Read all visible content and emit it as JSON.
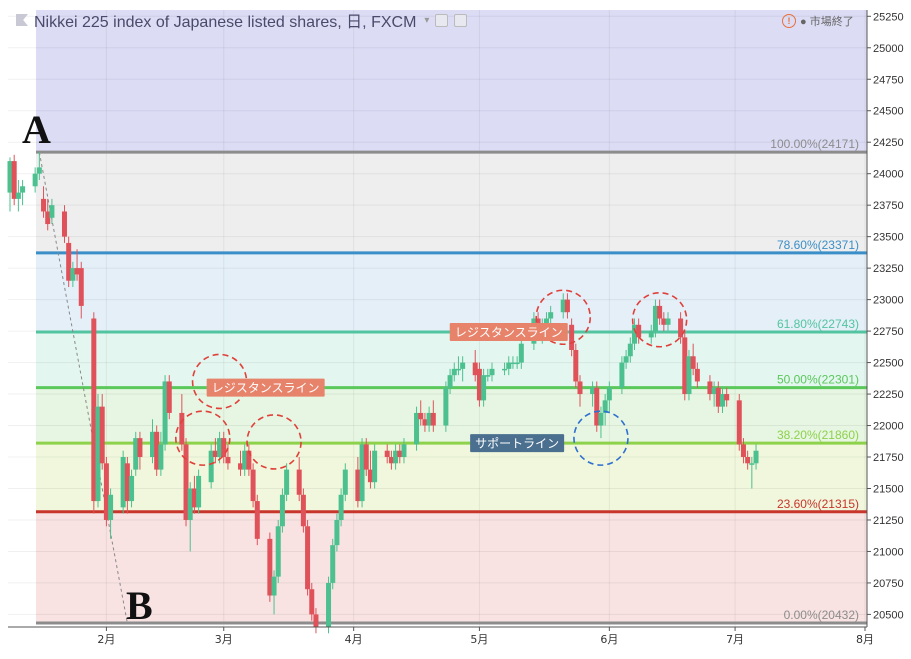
{
  "header": {
    "title": "Nikkei 225 index of Japanese listed shares, 日, FXCM",
    "caret": "▾",
    "status_icon": "warning-icon",
    "status_text": "● 市場終了"
  },
  "points": {
    "a": "A",
    "b": "B"
  },
  "annotations": [
    {
      "text": "レジスタンスライン",
      "color": "#e8836b",
      "x_date": "2018-05-08",
      "y": 22743
    },
    {
      "text": "レジスタンスライン",
      "color": "#e8836b",
      "x_date": "2018-03-11",
      "y": 22301
    },
    {
      "text": "サポートライン",
      "color": "#4a6f8f",
      "x_date": "2018-05-10",
      "y": 21860
    }
  ],
  "colors": {
    "up": "#4cc08f",
    "down": "#e0525a"
  },
  "chart_data": {
    "type": "candlestick",
    "title": "Nikkei 225 index of Japanese listed shares, 日, FXCM",
    "ylim": [
      20400,
      25300
    ],
    "y_ticks": [
      20500,
      20750,
      21000,
      21250,
      21500,
      21750,
      22000,
      22250,
      22500,
      22750,
      23000,
      23250,
      23500,
      23750,
      24000,
      24250,
      24500,
      24750,
      25000,
      25250
    ],
    "x_ticks": [
      {
        "label": "2月",
        "date": "2018-02-01"
      },
      {
        "label": "3月",
        "date": "2018-03-01"
      },
      {
        "label": "4月",
        "date": "2018-04-01"
      },
      {
        "label": "5月",
        "date": "2018-05-01"
      },
      {
        "label": "6月",
        "date": "2018-06-01"
      },
      {
        "label": "7月",
        "date": "2018-07-01"
      },
      {
        "label": "8月",
        "date": "2018-08-01"
      }
    ],
    "x_range": [
      "2018-01-09",
      "2018-08-01"
    ],
    "fib_levels": [
      {
        "label": "100.00%(24171)",
        "value": 24171,
        "color": "#8c8c8c",
        "band": "#eeeeee"
      },
      {
        "label": "78.60%(23371)",
        "value": 23371,
        "color": "#3a8fc8",
        "band": "#e4eff8"
      },
      {
        "label": "61.80%(22743)",
        "value": 22743,
        "color": "#52c5a0",
        "band": "#e3f6ef"
      },
      {
        "label": "50.00%(22301)",
        "value": 22301,
        "color": "#5bc85c",
        "band": "#e6f6e2"
      },
      {
        "label": "38.20%(21860)",
        "value": 21860,
        "color": "#8ed14a",
        "band": "#f0f7dc"
      },
      {
        "label": "23.60%(21315)",
        "value": 21315,
        "color": "#c8352b",
        "band": "#f8e2e2"
      },
      {
        "label": "0.00%(20432)",
        "value": 20432,
        "color": "#8c8c8c",
        "band": ""
      }
    ],
    "circles": [
      {
        "date": "2018-02-24",
        "price": 21900,
        "color": "#e0403a"
      },
      {
        "date": "2018-02-28",
        "price": 22350,
        "color": "#e0403a"
      },
      {
        "date": "2018-03-13",
        "price": 21870,
        "color": "#e0403a"
      },
      {
        "date": "2018-05-21",
        "price": 22860,
        "color": "#e0403a"
      },
      {
        "date": "2018-06-13",
        "price": 22840,
        "color": "#e0403a"
      },
      {
        "date": "2018-05-30",
        "price": 21900,
        "color": "#2f6fd0"
      }
    ],
    "candles": [
      {
        "d": "2018-01-09",
        "o": 23850,
        "h": 24130,
        "l": 23700,
        "c": 24100
      },
      {
        "d": "2018-01-10",
        "o": 24100,
        "h": 24150,
        "l": 23750,
        "c": 23800
      },
      {
        "d": "2018-01-11",
        "o": 23800,
        "h": 23950,
        "l": 23700,
        "c": 23850
      },
      {
        "d": "2018-01-12",
        "o": 23850,
        "h": 23950,
        "l": 23750,
        "c": 23900
      },
      {
        "d": "2018-01-15",
        "o": 23900,
        "h": 24050,
        "l": 23850,
        "c": 24000
      },
      {
        "d": "2018-01-16",
        "o": 24000,
        "h": 24170,
        "l": 23950,
        "c": 24050
      },
      {
        "d": "2018-01-17",
        "o": 23800,
        "h": 23900,
        "l": 23650,
        "c": 23700
      },
      {
        "d": "2018-01-18",
        "o": 23700,
        "h": 23800,
        "l": 23550,
        "c": 23600
      },
      {
        "d": "2018-01-19",
        "o": 23650,
        "h": 23800,
        "l": 23600,
        "c": 23750
      },
      {
        "d": "2018-01-22",
        "o": 23700,
        "h": 23750,
        "l": 23450,
        "c": 23500
      },
      {
        "d": "2018-01-23",
        "o": 23450,
        "h": 23500,
        "l": 23100,
        "c": 23150
      },
      {
        "d": "2018-01-24",
        "o": 23150,
        "h": 23300,
        "l": 23100,
        "c": 23250
      },
      {
        "d": "2018-01-25",
        "o": 23250,
        "h": 23400,
        "l": 23150,
        "c": 23200
      },
      {
        "d": "2018-01-26",
        "o": 23250,
        "h": 23300,
        "l": 22850,
        "c": 22950
      },
      {
        "d": "2018-01-29",
        "o": 22850,
        "h": 22900,
        "l": 21300,
        "c": 21400
      },
      {
        "d": "2018-01-30",
        "o": 21400,
        "h": 22250,
        "l": 21350,
        "c": 22150
      },
      {
        "d": "2018-01-31",
        "o": 22150,
        "h": 22250,
        "l": 21650,
        "c": 21700
      },
      {
        "d": "2018-02-01",
        "o": 21700,
        "h": 21750,
        "l": 21200,
        "c": 21250
      },
      {
        "d": "2018-02-02",
        "o": 21250,
        "h": 21500,
        "l": 21100,
        "c": 21450
      },
      {
        "d": "2018-02-05",
        "o": 21350,
        "h": 21800,
        "l": 21300,
        "c": 21750
      },
      {
        "d": "2018-02-06",
        "o": 21700,
        "h": 21750,
        "l": 21300,
        "c": 21400
      },
      {
        "d": "2018-02-07",
        "o": 21400,
        "h": 21650,
        "l": 21350,
        "c": 21600
      },
      {
        "d": "2018-02-08",
        "o": 21650,
        "h": 21950,
        "l": 21600,
        "c": 21900
      },
      {
        "d": "2018-02-09",
        "o": 21900,
        "h": 21950,
        "l": 21650,
        "c": 21750
      },
      {
        "d": "2018-02-12",
        "o": 21750,
        "h": 22050,
        "l": 21700,
        "c": 21950
      },
      {
        "d": "2018-02-13",
        "o": 21950,
        "h": 22000,
        "l": 21600,
        "c": 21650
      },
      {
        "d": "2018-02-14",
        "o": 21650,
        "h": 21950,
        "l": 21600,
        "c": 21850
      },
      {
        "d": "2018-02-15",
        "o": 21850,
        "h": 22400,
        "l": 21800,
        "c": 22350
      },
      {
        "d": "2018-02-16",
        "o": 22350,
        "h": 22400,
        "l": 22050,
        "c": 22100
      },
      {
        "d": "2018-02-19",
        "o": 22100,
        "h": 22250,
        "l": 21800,
        "c": 21850
      },
      {
        "d": "2018-02-20",
        "o": 21850,
        "h": 21900,
        "l": 21200,
        "c": 21250
      },
      {
        "d": "2018-02-21",
        "o": 21250,
        "h": 21550,
        "l": 21000,
        "c": 21500
      },
      {
        "d": "2018-02-22",
        "o": 21500,
        "h": 21600,
        "l": 21300,
        "c": 21350
      },
      {
        "d": "2018-02-23",
        "o": 21350,
        "h": 21650,
        "l": 21300,
        "c": 21600
      },
      {
        "d": "2018-02-26",
        "o": 21550,
        "h": 21850,
        "l": 21500,
        "c": 21800
      },
      {
        "d": "2018-02-27",
        "o": 21800,
        "h": 21900,
        "l": 21700,
        "c": 21750
      },
      {
        "d": "2018-02-28",
        "o": 21750,
        "h": 21950,
        "l": 21700,
        "c": 21900
      },
      {
        "d": "2018-03-01",
        "o": 21900,
        "h": 21950,
        "l": 21700,
        "c": 21750
      },
      {
        "d": "2018-03-02",
        "o": 21750,
        "h": 21850,
        "l": 21650,
        "c": 21700
      },
      {
        "d": "2018-03-05",
        "o": 21700,
        "h": 21800,
        "l": 21600,
        "c": 21650
      },
      {
        "d": "2018-03-06",
        "o": 21650,
        "h": 21850,
        "l": 21600,
        "c": 21800
      },
      {
        "d": "2018-03-07",
        "o": 21800,
        "h": 21850,
        "l": 21600,
        "c": 21650
      },
      {
        "d": "2018-03-08",
        "o": 21650,
        "h": 21700,
        "l": 21350,
        "c": 21400
      },
      {
        "d": "2018-03-09",
        "o": 21400,
        "h": 21450,
        "l": 21050,
        "c": 21100
      },
      {
        "d": "2018-03-12",
        "o": 21100,
        "h": 21150,
        "l": 20600,
        "c": 20650
      },
      {
        "d": "2018-03-13",
        "o": 20650,
        "h": 20850,
        "l": 20500,
        "c": 20800
      },
      {
        "d": "2018-03-14",
        "o": 20800,
        "h": 21250,
        "l": 20750,
        "c": 21200
      },
      {
        "d": "2018-03-15",
        "o": 21200,
        "h": 21500,
        "l": 21150,
        "c": 21450
      },
      {
        "d": "2018-03-16",
        "o": 21450,
        "h": 21700,
        "l": 21400,
        "c": 21650
      },
      {
        "d": "2018-03-19",
        "o": 21650,
        "h": 21750,
        "l": 21400,
        "c": 21450
      },
      {
        "d": "2018-03-20",
        "o": 21450,
        "h": 21500,
        "l": 21150,
        "c": 21200
      },
      {
        "d": "2018-03-21",
        "o": 21200,
        "h": 21250,
        "l": 20650,
        "c": 20700
      },
      {
        "d": "2018-03-22",
        "o": 20700,
        "h": 20750,
        "l": 20450,
        "c": 20500
      },
      {
        "d": "2018-03-23",
        "o": 20500,
        "h": 20550,
        "l": 20350,
        "c": 20400
      },
      {
        "d": "2018-03-26",
        "o": 20400,
        "h": 20800,
        "l": 20350,
        "c": 20750
      },
      {
        "d": "2018-03-27",
        "o": 20750,
        "h": 21100,
        "l": 20700,
        "c": 21050
      },
      {
        "d": "2018-03-28",
        "o": 21050,
        "h": 21300,
        "l": 21000,
        "c": 21250
      },
      {
        "d": "2018-03-29",
        "o": 21250,
        "h": 21500,
        "l": 21200,
        "c": 21450
      },
      {
        "d": "2018-03-30",
        "o": 21450,
        "h": 21700,
        "l": 21400,
        "c": 21650
      },
      {
        "d": "2018-04-02",
        "o": 21650,
        "h": 21750,
        "l": 21350,
        "c": 21400
      },
      {
        "d": "2018-04-03",
        "o": 21400,
        "h": 21900,
        "l": 21350,
        "c": 21850
      },
      {
        "d": "2018-04-04",
        "o": 21850,
        "h": 21900,
        "l": 21600,
        "c": 21650
      },
      {
        "d": "2018-04-05",
        "o": 21650,
        "h": 21800,
        "l": 21500,
        "c": 21550
      },
      {
        "d": "2018-04-06",
        "o": 21550,
        "h": 21850,
        "l": 21500,
        "c": 21800
      },
      {
        "d": "2018-04-09",
        "o": 21800,
        "h": 21850,
        "l": 21700,
        "c": 21750
      },
      {
        "d": "2018-04-10",
        "o": 21750,
        "h": 21800,
        "l": 21650,
        "c": 21700
      },
      {
        "d": "2018-04-11",
        "o": 21700,
        "h": 21850,
        "l": 21650,
        "c": 21800
      },
      {
        "d": "2018-04-12",
        "o": 21800,
        "h": 21850,
        "l": 21700,
        "c": 21750
      },
      {
        "d": "2018-04-13",
        "o": 21750,
        "h": 21900,
        "l": 21700,
        "c": 21850
      },
      {
        "d": "2018-04-16",
        "o": 21850,
        "h": 22150,
        "l": 21800,
        "c": 22100
      },
      {
        "d": "2018-04-17",
        "o": 22100,
        "h": 22200,
        "l": 22000,
        "c": 22050
      },
      {
        "d": "2018-04-18",
        "o": 22050,
        "h": 22100,
        "l": 21950,
        "c": 22000
      },
      {
        "d": "2018-04-19",
        "o": 22000,
        "h": 22150,
        "l": 21950,
        "c": 22100
      },
      {
        "d": "2018-04-20",
        "o": 22100,
        "h": 22200,
        "l": 21950,
        "c": 22000
      },
      {
        "d": "2018-04-23",
        "o": 22000,
        "h": 22350,
        "l": 21950,
        "c": 22300
      },
      {
        "d": "2018-04-24",
        "o": 22300,
        "h": 22450,
        "l": 22250,
        "c": 22400
      },
      {
        "d": "2018-04-25",
        "o": 22400,
        "h": 22500,
        "l": 22350,
        "c": 22450
      },
      {
        "d": "2018-04-26",
        "o": 22450,
        "h": 22550,
        "l": 22400,
        "c": 22450
      },
      {
        "d": "2018-04-27",
        "o": 22450,
        "h": 22550,
        "l": 22350,
        "c": 22500
      },
      {
        "d": "2018-04-30",
        "o": 22500,
        "h": 22600,
        "l": 22350,
        "c": 22400
      },
      {
        "d": "2018-05-01",
        "o": 22450,
        "h": 22500,
        "l": 22150,
        "c": 22200
      },
      {
        "d": "2018-05-02",
        "o": 22200,
        "h": 22450,
        "l": 22150,
        "c": 22400
      },
      {
        "d": "2018-05-03",
        "o": 22400,
        "h": 22450,
        "l": 22350,
        "c": 22400
      },
      {
        "d": "2018-05-04",
        "o": 22400,
        "h": 22500,
        "l": 22350,
        "c": 22450
      },
      {
        "d": "2018-05-07",
        "o": 22450,
        "h": 22500,
        "l": 22400,
        "c": 22450
      },
      {
        "d": "2018-05-08",
        "o": 22450,
        "h": 22550,
        "l": 22400,
        "c": 22500
      },
      {
        "d": "2018-05-09",
        "o": 22500,
        "h": 22550,
        "l": 22450,
        "c": 22500
      },
      {
        "d": "2018-05-10",
        "o": 22500,
        "h": 22550,
        "l": 22450,
        "c": 22500
      },
      {
        "d": "2018-05-11",
        "o": 22500,
        "h": 22700,
        "l": 22450,
        "c": 22650
      },
      {
        "d": "2018-05-14",
        "o": 22650,
        "h": 22900,
        "l": 22600,
        "c": 22850
      },
      {
        "d": "2018-05-15",
        "o": 22850,
        "h": 22900,
        "l": 22700,
        "c": 22750
      },
      {
        "d": "2018-05-16",
        "o": 22750,
        "h": 22850,
        "l": 22650,
        "c": 22800
      },
      {
        "d": "2018-05-17",
        "o": 22800,
        "h": 22900,
        "l": 22750,
        "c": 22850
      },
      {
        "d": "2018-05-18",
        "o": 22850,
        "h": 22950,
        "l": 22800,
        "c": 22900
      },
      {
        "d": "2018-05-21",
        "o": 22900,
        "h": 23050,
        "l": 22850,
        "c": 23000
      },
      {
        "d": "2018-05-22",
        "o": 23000,
        "h": 23050,
        "l": 22850,
        "c": 22900
      },
      {
        "d": "2018-05-23",
        "o": 22800,
        "h": 22850,
        "l": 22550,
        "c": 22600
      },
      {
        "d": "2018-05-24",
        "o": 22600,
        "h": 22650,
        "l": 22300,
        "c": 22350
      },
      {
        "d": "2018-05-25",
        "o": 22350,
        "h": 22400,
        "l": 22150,
        "c": 22250
      },
      {
        "d": "2018-05-28",
        "o": 22250,
        "h": 22350,
        "l": 22150,
        "c": 22300
      },
      {
        "d": "2018-05-29",
        "o": 22300,
        "h": 22350,
        "l": 21950,
        "c": 22000
      },
      {
        "d": "2018-05-30",
        "o": 22000,
        "h": 22150,
        "l": 21900,
        "c": 22100
      },
      {
        "d": "2018-05-31",
        "o": 22100,
        "h": 22250,
        "l": 22000,
        "c": 22200
      },
      {
        "d": "2018-06-01",
        "o": 22200,
        "h": 22350,
        "l": 22100,
        "c": 22300
      },
      {
        "d": "2018-06-04",
        "o": 22300,
        "h": 22550,
        "l": 22250,
        "c": 22500
      },
      {
        "d": "2018-06-05",
        "o": 22500,
        "h": 22600,
        "l": 22450,
        "c": 22550
      },
      {
        "d": "2018-06-06",
        "o": 22550,
        "h": 22700,
        "l": 22500,
        "c": 22650
      },
      {
        "d": "2018-06-07",
        "o": 22650,
        "h": 22850,
        "l": 22600,
        "c": 22800
      },
      {
        "d": "2018-06-08",
        "o": 22800,
        "h": 22850,
        "l": 22650,
        "c": 22700
      },
      {
        "d": "2018-06-11",
        "o": 22700,
        "h": 22800,
        "l": 22650,
        "c": 22750
      },
      {
        "d": "2018-06-12",
        "o": 22750,
        "h": 23000,
        "l": 22700,
        "c": 22950
      },
      {
        "d": "2018-06-13",
        "o": 22950,
        "h": 23000,
        "l": 22800,
        "c": 22850
      },
      {
        "d": "2018-06-14",
        "o": 22850,
        "h": 22900,
        "l": 22750,
        "c": 22800
      },
      {
        "d": "2018-06-15",
        "o": 22800,
        "h": 22900,
        "l": 22750,
        "c": 22850
      },
      {
        "d": "2018-06-18",
        "o": 22850,
        "h": 22900,
        "l": 22650,
        "c": 22700
      },
      {
        "d": "2018-06-19",
        "o": 22700,
        "h": 22750,
        "l": 22200,
        "c": 22250
      },
      {
        "d": "2018-06-20",
        "o": 22250,
        "h": 22600,
        "l": 22200,
        "c": 22550
      },
      {
        "d": "2018-06-21",
        "o": 22550,
        "h": 22650,
        "l": 22400,
        "c": 22450
      },
      {
        "d": "2018-06-22",
        "o": 22450,
        "h": 22500,
        "l": 22300,
        "c": 22350
      },
      {
        "d": "2018-06-25",
        "o": 22350,
        "h": 22400,
        "l": 22200,
        "c": 22250
      },
      {
        "d": "2018-06-26",
        "o": 22250,
        "h": 22350,
        "l": 22150,
        "c": 22300
      },
      {
        "d": "2018-06-27",
        "o": 22300,
        "h": 22350,
        "l": 22100,
        "c": 22150
      },
      {
        "d": "2018-06-28",
        "o": 22150,
        "h": 22300,
        "l": 22100,
        "c": 22250
      },
      {
        "d": "2018-06-29",
        "o": 22250,
        "h": 22300,
        "l": 22150,
        "c": 22200
      },
      {
        "d": "2018-07-02",
        "o": 22200,
        "h": 22250,
        "l": 21800,
        "c": 21850
      },
      {
        "d": "2018-07-03",
        "o": 21850,
        "h": 21900,
        "l": 21700,
        "c": 21750
      },
      {
        "d": "2018-07-04",
        "o": 21750,
        "h": 21800,
        "l": 21650,
        "c": 21700
      },
      {
        "d": "2018-07-05",
        "o": 21700,
        "h": 21750,
        "l": 21500,
        "c": 21700
      },
      {
        "d": "2018-07-06",
        "o": 21700,
        "h": 21850,
        "l": 21650,
        "c": 21800
      }
    ]
  }
}
